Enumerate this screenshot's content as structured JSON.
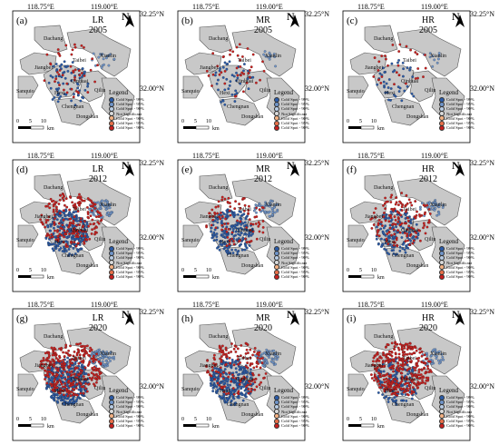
{
  "axes": {
    "lon_left": "118.75°E",
    "lon_right": "119.00°E",
    "lat_top": "32.25°N",
    "lat_bottom": "32.00°N",
    "north": "N"
  },
  "scale_bar": {
    "ticks": [
      "0",
      "5",
      "10"
    ],
    "unit": "km"
  },
  "legend": {
    "title": "Legend",
    "items": [
      {
        "label": "Cold Spot - 99%",
        "color": "#2b5ba8"
      },
      {
        "label": "Cold Spot - 95%",
        "color": "#6f94c8"
      },
      {
        "label": "Cold Spot - 90%",
        "color": "#b8cce4"
      },
      {
        "label": "Not Significant",
        "color": "#d9d9d9"
      },
      {
        "label": "Cold Spot - 90%",
        "color": "#f4b183"
      },
      {
        "label": "Cold Spot - 95%",
        "color": "#e8704a"
      },
      {
        "label": "Cold Spot - 90%",
        "color": "#c8201f"
      }
    ]
  },
  "places": {
    "dachang": "Dachang",
    "xianlin": "Xianlin",
    "jiangbei": "Jiangbei",
    "taibei": "Taibei",
    "sanquio": "Sanquio",
    "hexi": "Hexi",
    "qinhuai": "Qinhuai",
    "qilin": "Qilin",
    "chengnan": "Chengnan",
    "dongshan": "Dongshan"
  },
  "colors": {
    "region_fill": "#c8c8c8",
    "region_stroke": "#555555",
    "cold": "#2b5ba8",
    "hot": "#c8201f",
    "light_cold": "#6f94c8"
  },
  "panels": [
    {
      "label": "(a)",
      "res": "LR",
      "year": "2005",
      "cold": 70,
      "hot": 45
    },
    {
      "label": "(b)",
      "res": "MR",
      "year": "2005",
      "cold": 45,
      "hot": 40
    },
    {
      "label": "(c)",
      "res": "HR",
      "year": "2005",
      "cold": 40,
      "hot": 30
    },
    {
      "label": "(d)",
      "res": "LR",
      "year": "2012",
      "cold": 260,
      "hot": 200
    },
    {
      "label": "(e)",
      "res": "MR",
      "year": "2012",
      "cold": 200,
      "hot": 90
    },
    {
      "label": "(f)",
      "res": "HR",
      "year": "2012",
      "cold": 150,
      "hot": 140
    },
    {
      "label": "(g)",
      "res": "LR",
      "year": "2020",
      "cold": 340,
      "hot": 320
    },
    {
      "label": "(h)",
      "res": "MR",
      "year": "2020",
      "cold": 260,
      "hot": 150
    },
    {
      "label": "(i)",
      "res": "HR",
      "year": "2020",
      "cold": 150,
      "hot": 360
    }
  ]
}
